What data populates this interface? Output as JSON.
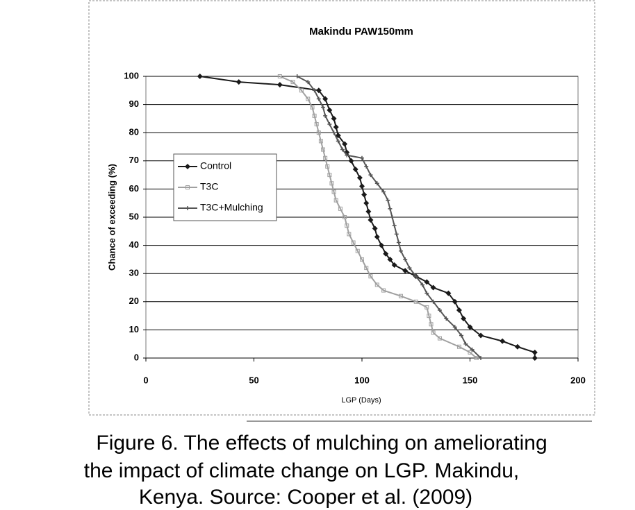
{
  "chart_data": {
    "type": "line",
    "title": "Makindu PAW150mm",
    "x_label": "LGP (Days)",
    "y_label": "Chance of exceeding (%)",
    "xlim": [
      0,
      200
    ],
    "xticks": [
      0,
      50,
      100,
      150,
      200
    ],
    "ylim": [
      0,
      100
    ],
    "yticks": [
      0,
      10,
      20,
      30,
      40,
      50,
      60,
      70,
      80,
      90,
      100
    ],
    "grid": true,
    "legend": "left",
    "series": [
      {
        "name": "Control",
        "color": "#1a1a1a",
        "marker": "diamond",
        "x": [
          25,
          43,
          62,
          80,
          83,
          85,
          87,
          88,
          89,
          92,
          93,
          95,
          97,
          99,
          100,
          101,
          102,
          103,
          104,
          106,
          107,
          109,
          111,
          113,
          115,
          120,
          125,
          130,
          133,
          140,
          143,
          145,
          147,
          150,
          155,
          165,
          172,
          180,
          180
        ],
        "values": [
          100,
          98,
          97,
          95,
          92,
          88,
          85,
          82,
          79,
          76,
          73,
          70,
          67,
          64,
          61,
          58,
          55,
          52,
          49,
          46,
          43,
          40,
          37,
          35,
          33,
          31,
          29,
          27,
          25,
          23,
          20,
          17,
          14,
          11,
          8,
          6,
          4,
          2,
          0
        ]
      },
      {
        "name": "T3C",
        "color": "#a0a0a0",
        "marker": "square",
        "x": [
          62,
          68,
          72,
          75,
          77,
          78,
          79,
          80,
          81,
          82,
          83,
          84,
          85,
          86,
          87,
          88,
          90,
          92,
          93,
          94,
          96,
          98,
          100,
          102,
          104,
          107,
          110,
          118,
          125,
          130,
          131,
          132,
          133,
          136,
          145,
          150,
          153
        ],
        "values": [
          100,
          98,
          95,
          92,
          89,
          86,
          83,
          80,
          77,
          74,
          71,
          68,
          65,
          62,
          59,
          56,
          53,
          50,
          47,
          44,
          41,
          38,
          35,
          32,
          29,
          26,
          24,
          22,
          20,
          18,
          15,
          12,
          9,
          7,
          4,
          2,
          0
        ]
      },
      {
        "name": "T3C+Mulching",
        "color": "#555555",
        "marker": "plus",
        "x": [
          70,
          75,
          78,
          80,
          82,
          83,
          85,
          87,
          89,
          91,
          93,
          100,
          102,
          104,
          107,
          110,
          112,
          113,
          114,
          115,
          116,
          117,
          118,
          120,
          122,
          125,
          128,
          130,
          133,
          136,
          139,
          143,
          146,
          148,
          151,
          155
        ],
        "values": [
          100,
          98,
          95,
          92,
          89,
          86,
          83,
          80,
          77,
          74,
          72,
          71,
          68,
          65,
          62,
          59,
          56,
          53,
          50,
          47,
          44,
          41,
          38,
          35,
          32,
          29,
          26,
          23,
          20,
          17,
          14,
          11,
          8,
          5,
          3,
          0
        ]
      }
    ]
  },
  "caption": [
    "Figure 6.  The effects of mulching on ameliorating",
    "the impact of climate change on LGP.  Makindu,",
    "Kenya. Source: Cooper et al. (2009)"
  ]
}
